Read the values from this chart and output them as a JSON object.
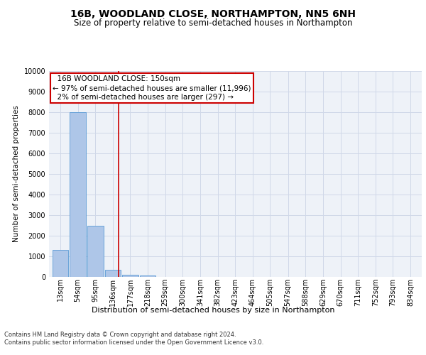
{
  "title": "16B, WOODLAND CLOSE, NORTHAMPTON, NN5 6NH",
  "subtitle": "Size of property relative to semi-detached houses in Northampton",
  "xlabel_bottom": "Distribution of semi-detached houses by size in Northampton",
  "ylabel": "Number of semi-detached properties",
  "footer": "Contains HM Land Registry data © Crown copyright and database right 2024.\nContains public sector information licensed under the Open Government Licence v3.0.",
  "bar_labels": [
    "13sqm",
    "54sqm",
    "95sqm",
    "136sqm",
    "177sqm",
    "218sqm",
    "259sqm",
    "300sqm",
    "341sqm",
    "382sqm",
    "423sqm",
    "464sqm",
    "505sqm",
    "547sqm",
    "588sqm",
    "629sqm",
    "670sqm",
    "711sqm",
    "752sqm",
    "793sqm",
    "834sqm"
  ],
  "bar_values": [
    1300,
    8000,
    2500,
    350,
    120,
    70,
    10,
    5,
    2,
    1,
    0,
    0,
    0,
    0,
    0,
    0,
    0,
    0,
    0,
    0,
    0
  ],
  "bar_color": "#aec6e8",
  "bar_edge_color": "#5b9bd5",
  "ylim": [
    0,
    10000
  ],
  "yticks": [
    0,
    1000,
    2000,
    3000,
    4000,
    5000,
    6000,
    7000,
    8000,
    9000,
    10000
  ],
  "property_size": 150,
  "property_label": "16B WOODLAND CLOSE: 150sqm",
  "pct_smaller": 97,
  "count_smaller": 11996,
  "pct_larger": 2,
  "count_larger": 297,
  "vline_color": "#cc0000",
  "annotation_box_color": "#cc0000",
  "grid_color": "#d0d8e8",
  "background_color": "#eef2f8",
  "title_fontsize": 10,
  "subtitle_fontsize": 8.5,
  "tick_fontsize": 7,
  "ylabel_fontsize": 7.5,
  "ann_fontsize": 7.5,
  "xlabel_bottom_fontsize": 8,
  "footer_fontsize": 6,
  "bin_edges": [
    13,
    54,
    95,
    136,
    177,
    218,
    259,
    300,
    341,
    382,
    423,
    464,
    505,
    547,
    588,
    629,
    670,
    711,
    752,
    793,
    834
  ]
}
